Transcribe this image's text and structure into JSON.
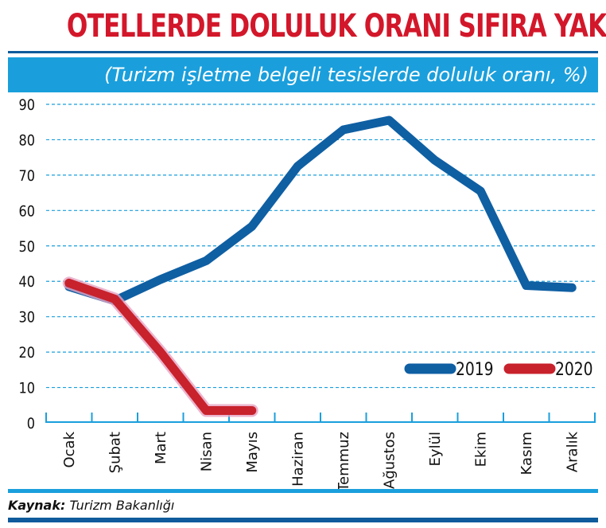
{
  "header": {
    "title": "OTELLERDE DOLULUK ORANI SIFIRA YAKIN",
    "subtitle": "(Turizm işletme belgeli tesislerde doluluk oranı, %)"
  },
  "footer": {
    "source_label": "Kaynak:",
    "source_text": "Turizm Bakanlığı"
  },
  "colors": {
    "title": "#d3172a",
    "banner": "#1a9fdc",
    "series_2019": "#0f5fa3",
    "series_2020": "#c8222c",
    "grid": "#1a9fdc"
  },
  "chart_data": {
    "type": "line",
    "title": "OTELLERDE DOLULUK ORANI SIFIRA YAKIN",
    "subtitle": "(Turizm işletme belgeli tesislerde doluluk oranı, %)",
    "xlabel": "",
    "ylabel": "",
    "categories": [
      "Ocak",
      "Şubat",
      "Mart",
      "Nisan",
      "Mayıs",
      "Haziran",
      "Temmuz",
      "Ağustos",
      "Eylül",
      "Ekim",
      "Kasım",
      "Aralık"
    ],
    "yticks": [
      "0",
      "10",
      "20",
      "30",
      "40",
      "50",
      "60",
      "70",
      "80",
      "90"
    ],
    "ylim": [
      0,
      90
    ],
    "grid": true,
    "legend_position": "bottom-right",
    "series": [
      {
        "name": "2019",
        "values": [
          38.5,
          34.5,
          40.5,
          45.8,
          55.5,
          72.5,
          82.8,
          85.5,
          74.2,
          65.5,
          38.8,
          38.2
        ]
      },
      {
        "name": "2020",
        "values": [
          39.5,
          35,
          20,
          3.5,
          3.5,
          null,
          null,
          null,
          null,
          null,
          null,
          null
        ]
      }
    ]
  }
}
